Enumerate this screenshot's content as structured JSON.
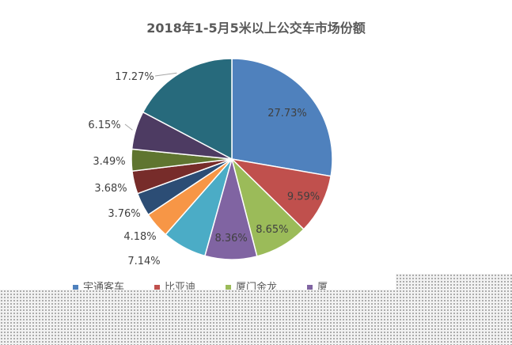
{
  "chart_data": {
    "type": "pie",
    "title": "2018年1-5月5米以上公交车市场份额",
    "slices": [
      {
        "name": "宇通客车",
        "value": 27.73,
        "label": "27.73%",
        "color": "#4f81bd"
      },
      {
        "name": "比亚迪",
        "value": 9.59,
        "label": "9.59%",
        "color": "#c0504d"
      },
      {
        "name": "厦门金龙",
        "value": 8.65,
        "label": "8.65%",
        "color": "#9bbb59"
      },
      {
        "name": "",
        "value": 8.36,
        "label": "8.36%",
        "color": "#8064a2"
      },
      {
        "name": "",
        "value": 7.14,
        "label": "7.14%",
        "color": "#4bacc6"
      },
      {
        "name": "",
        "value": 4.18,
        "label": "4.18%",
        "color": "#f79646"
      },
      {
        "name": "",
        "value": 3.76,
        "label": "3.76%",
        "color": "#2c4d75"
      },
      {
        "name": "",
        "value": 3.68,
        "label": "3.68%",
        "color": "#772c2a"
      },
      {
        "name": "",
        "value": 3.49,
        "label": "3.49%",
        "color": "#5f7530"
      },
      {
        "name": "",
        "value": 6.15,
        "label": "6.15%",
        "color": "#4d3b62"
      },
      {
        "name": "",
        "value": 17.27,
        "label": "17.27%",
        "color": "#276a7c"
      }
    ],
    "legend": {
      "position": "bottom",
      "items": [
        {
          "name": "宇通客车",
          "color": "#4f81bd"
        },
        {
          "name": "比亚迪",
          "color": "#c0504d"
        },
        {
          "name": "厦门金龙",
          "color": "#9bbb59"
        },
        {
          "name": "厦",
          "color": "#8064a2"
        }
      ]
    }
  }
}
